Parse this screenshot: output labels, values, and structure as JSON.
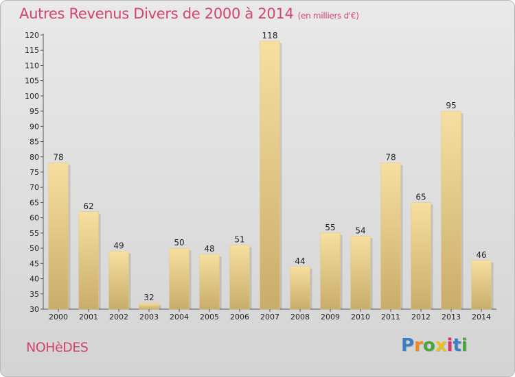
{
  "title": "Autres Revenus Divers de 2000 à 2014",
  "title_unit": "(en milliers d'€)",
  "commune": "NOHèDES",
  "logo": {
    "letters": [
      "P",
      "r",
      "o",
      "x",
      "i",
      "t",
      "i"
    ],
    "colors": [
      "#3a7fc4",
      "#f08a1c",
      "#4aa33c",
      "#e8c21a",
      "#d8346a",
      "#3a7fc4",
      "#4aa33c"
    ]
  },
  "colors": {
    "accent": "#d2456c",
    "bar_light": "#f6dfa0",
    "bar_dark": "#c9ad6a"
  },
  "chart_data": {
    "type": "bar",
    "title": "Autres Revenus Divers de 2000 à 2014",
    "categories": [
      "2000",
      "2001",
      "2002",
      "2003",
      "2004",
      "2005",
      "2006",
      "2007",
      "2008",
      "2009",
      "2010",
      "2011",
      "2012",
      "2013",
      "2014"
    ],
    "values": [
      78,
      62,
      49,
      32,
      50,
      48,
      51,
      118,
      44,
      55,
      54,
      78,
      65,
      95,
      46
    ],
    "xlabel": "",
    "ylabel": "",
    "ylim": [
      30,
      120
    ],
    "yticks": [
      30,
      35,
      40,
      45,
      50,
      55,
      60,
      65,
      70,
      75,
      80,
      85,
      90,
      95,
      100,
      105,
      110,
      115,
      120
    ],
    "grid": false,
    "legend": "none"
  }
}
